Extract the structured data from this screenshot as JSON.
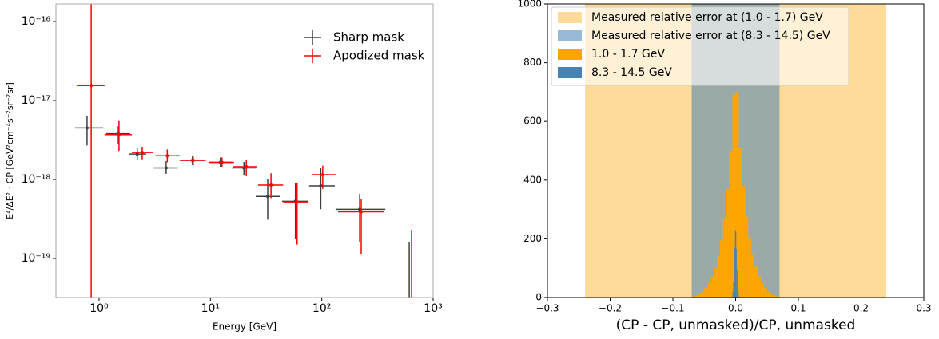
{
  "chart_data": [
    {
      "type": "errorbar",
      "xscale": "log",
      "yscale": "log",
      "xlabel": "Energy [GeV]",
      "ylabel": "E⁴/ΔE² · CP [GeV²cm⁻⁴s⁻²sr⁻²sr]",
      "xlim": [
        0.41,
        1000
      ],
      "ylim": [
        3.2e-20,
        1.67e-16
      ],
      "xticks": [
        {
          "value": 1,
          "label": "10⁰"
        },
        {
          "value": 10,
          "label": "10¹"
        },
        {
          "value": 100,
          "label": "10²"
        },
        {
          "value": 1000,
          "label": "10³"
        }
      ],
      "yticks": [
        {
          "value": 1e-19,
          "label": "10⁻¹⁹"
        },
        {
          "value": 1e-18,
          "label": "10⁻¹⁸"
        },
        {
          "value": 1e-17,
          "label": "10⁻¹⁷"
        },
        {
          "value": 1e-16,
          "label": "10⁻¹⁶"
        }
      ],
      "legend": "upper right",
      "series": [
        {
          "name": "Sharp mask",
          "color": "#404040",
          "x": [
            0.78,
            1.49,
            2.2,
            4.0,
            6.9,
            12.3,
            20,
            32.7,
            58,
            98,
            219,
            610
          ],
          "values": [
            4.5e-18,
            3.8e-18,
            2.1e-18,
            1.4e-18,
            1.75e-18,
            1.65e-18,
            1.4e-18,
            6.1e-19,
            5.3e-19,
            8.3e-19,
            4.2e-19,
            null
          ],
          "x_low": [
            0.61,
            1.16,
            1.87,
            3.1,
            5.4,
            9.8,
            15.6,
            25.5,
            44,
            77,
            133,
            null
          ],
          "x_high": [
            1.09,
            1.9,
            2.65,
            5.1,
            8.9,
            15.6,
            25.5,
            41.9,
            76,
            131,
            372,
            null
          ],
          "y_low": [
            2.7e-18,
            2.85e-18,
            1.75e-18,
            1.18e-18,
            1.52e-18,
            1.45e-18,
            1.12e-18,
            3.1e-19,
            1.75e-19,
            4.2e-19,
            1.6e-19,
            1e-20
          ],
          "y_high": [
            6.3e-18,
            4.75e-18,
            2.5e-18,
            1.7e-18,
            2e-18,
            1.9e-18,
            1.67e-18,
            1e-18,
            8.9e-19,
            1.42e-18,
            6.6e-19,
            1.63e-19
          ]
        },
        {
          "name": "Apodized mask",
          "color": "#ff0000",
          "x": [
            0.85,
            1.51,
            2.44,
            4.1,
            7.0,
            12.7,
            21,
            35,
            60,
            102,
            226,
            640
          ],
          "values": [
            1.55e-17,
            3.7e-18,
            2.2e-18,
            2e-18,
            1.75e-18,
            1.65e-18,
            1.45e-18,
            8.5e-19,
            5.2e-19,
            1.15e-18,
            3.9e-19,
            null
          ],
          "x_low": [
            0.63,
            1.14,
            1.97,
            3.2,
            5.3,
            9.8,
            15.8,
            26.8,
            45,
            81,
            140,
            null
          ],
          "x_high": [
            1.12,
            1.97,
            3.07,
            5.3,
            9.1,
            16.3,
            26,
            45,
            76,
            133,
            360,
            null
          ],
          "y_low": [
            2e-20,
            2.3e-18,
            1.8e-18,
            1.65e-18,
            1.5e-18,
            1.45e-18,
            1.1e-18,
            5.8e-19,
            1.5e-19,
            7.6e-19,
            1.15e-19,
            2e-20
          ],
          "y_high": [
            2e-16,
            5.5e-18,
            2.6e-18,
            2.4e-18,
            2e-18,
            1.9e-18,
            1.75e-18,
            1.2e-18,
            9e-19,
            1.5e-18,
            5.6e-19,
            2.3e-19
          ]
        }
      ]
    },
    {
      "type": "histogram",
      "xlabel": "(CP - CP, unmasked)/CP, unmasked",
      "xlim": [
        -0.3,
        0.3
      ],
      "ylim": [
        0,
        1000
      ],
      "xticks": [
        {
          "value": -0.3,
          "label": "−0.3"
        },
        {
          "value": -0.2,
          "label": "−0.2"
        },
        {
          "value": -0.1,
          "label": "−0.1"
        },
        {
          "value": 0,
          "label": "0.0"
        },
        0.1,
        0.2,
        0.3
      ],
      "yticks": [
        0,
        200,
        400,
        600,
        800,
        1000
      ],
      "legend": "upper left",
      "spans": [
        {
          "name": "Measured relative error at (1.0 - 1.7) GeV",
          "color": "#ffa500",
          "alpha": 0.4,
          "range": [
            -0.24,
            0.24
          ]
        },
        {
          "name": "Measured relative error at (8.3 - 14.5) GeV",
          "color": "#4682b4",
          "alpha": 0.55,
          "range": [
            -0.07,
            0.07
          ]
        }
      ],
      "series": [
        {
          "name": "1.0 - 1.7 GeV",
          "color": "#ffa500",
          "bins": [
            -0.07,
            -0.065,
            -0.06,
            -0.055,
            -0.05,
            -0.045,
            -0.04,
            -0.035,
            -0.03,
            -0.025,
            -0.02,
            -0.015,
            -0.01,
            -0.005,
            0,
            0.005,
            0.01,
            0.015,
            0.02,
            0.025,
            0.03,
            0.035,
            0.04,
            0.045,
            0.05,
            0.055,
            0.06,
            0.065,
            0.07
          ],
          "values": [
            3,
            6,
            12,
            20,
            32,
            48,
            70,
            100,
            140,
            195,
            270,
            370,
            500,
            690,
            700,
            510,
            380,
            275,
            200,
            145,
            105,
            72,
            50,
            33,
            21,
            12,
            6,
            3
          ]
        },
        {
          "name": "8.3 - 14.5 GeV",
          "color": "#4682b4",
          "bins": [
            -0.005,
            -0.004,
            -0.003,
            -0.002,
            -0.001,
            0,
            0.001,
            0.002,
            0.003,
            0.004,
            0.005
          ],
          "values": [
            20,
            50,
            100,
            170,
            230,
            225,
            165,
            95,
            45,
            18
          ]
        }
      ]
    }
  ]
}
